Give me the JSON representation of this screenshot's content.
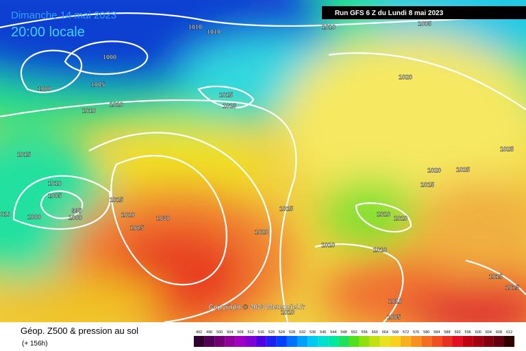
{
  "header": {
    "date": "Dimanche 14 mai 2023",
    "time": "20:00 locale",
    "run": "Run GFS 6 Z du Lundi 8 mai 2023"
  },
  "map": {
    "copyright": "Copyright © 2023 Meteociel.fr",
    "isobar_labels": [
      "1010",
      "1010",
      "1010",
      "1005",
      "1000",
      "1000",
      "1005",
      "1010",
      "1010",
      "1015",
      "1015",
      "1020",
      "1025",
      "1015",
      "1010",
      "1005",
      "995",
      "1000",
      "1000",
      "010",
      "1015",
      "1020",
      "1025",
      "1030",
      "1020",
      "1025",
      "1015",
      "1015",
      "1020",
      "1010",
      "1010",
      "1010",
      "1010",
      "1015",
      "1015",
      "1010",
      "1005",
      "1010"
    ]
  },
  "footer": {
    "title": "Géop. Z500 & pression au sol",
    "lead": "(+ 156h)",
    "scale": [
      492,
      496,
      500,
      504,
      508,
      512,
      516,
      520,
      524,
      528,
      532,
      536,
      540,
      544,
      548,
      552,
      556,
      560,
      564,
      568,
      572,
      576,
      580,
      584,
      588,
      592,
      596,
      600,
      604,
      608,
      612
    ]
  }
}
